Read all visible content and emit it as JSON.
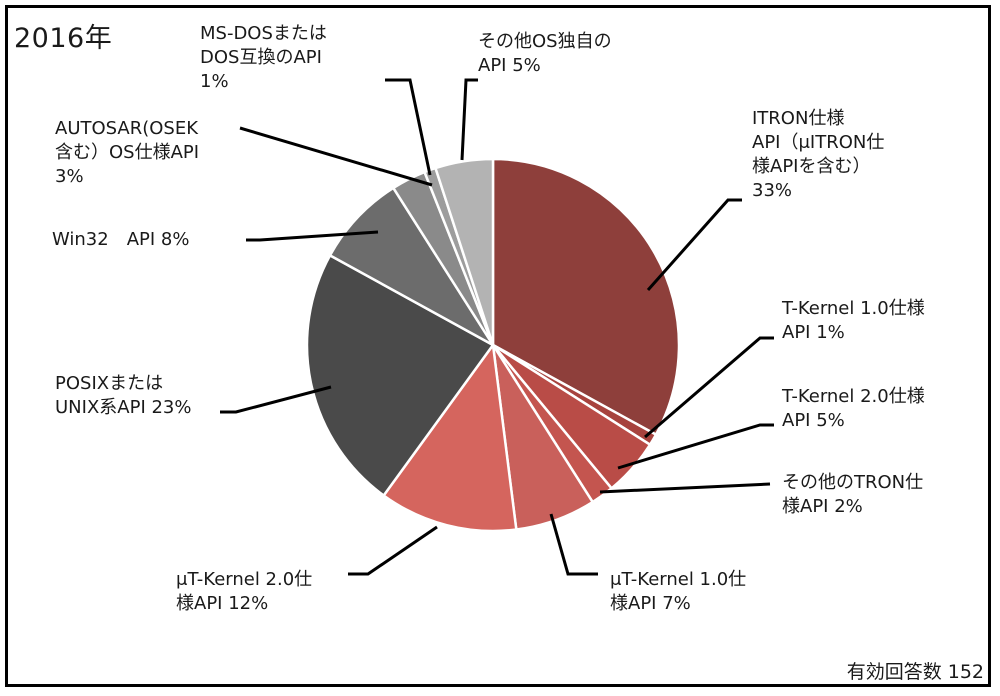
{
  "header": {
    "year": "2016年"
  },
  "footer": {
    "count_label": "有効回答数",
    "count_value": "152"
  },
  "chart_data": {
    "type": "pie",
    "title": "2016年",
    "start": "top",
    "direction": "clockwise",
    "slices": [
      {
        "lines": [
          "ITRON仕様",
          "API（μITRON仕",
          "様APIを含む）",
          "33%"
        ],
        "value": 33,
        "color": "#8e3f3b"
      },
      {
        "lines": [
          "T-Kernel 1.0仕様",
          "API 1%"
        ],
        "value": 1,
        "color": "#a7433e"
      },
      {
        "lines": [
          "T-Kernel 2.0仕様",
          "API 5%"
        ],
        "value": 5,
        "color": "#b94c47"
      },
      {
        "lines": [
          "その他のTRON仕",
          "様API 2%"
        ],
        "value": 2,
        "color": "#c4554f"
      },
      {
        "lines": [
          "μT-Kernel 1.0仕",
          "様API 7%"
        ],
        "value": 7,
        "color": "#c9605b"
      },
      {
        "lines": [
          "μT-Kernel 2.0仕",
          "様API 12%"
        ],
        "value": 12,
        "color": "#d5655e"
      },
      {
        "lines": [
          "POSIXまたは",
          "UNIX系API 23%"
        ],
        "value": 23,
        "color": "#4a4a4a"
      },
      {
        "lines": [
          "Win32　API 8%"
        ],
        "value": 8,
        "color": "#6c6c6c"
      },
      {
        "lines": [
          "AUTOSAR(OSEK",
          "含む）OS仕様API",
          "3%"
        ],
        "value": 3,
        "color": "#8a8a8a"
      },
      {
        "lines": [
          "MS-DOSまたは",
          "DOS互換のAPI",
          "1%"
        ],
        "value": 1,
        "color": "#9d9d9d"
      },
      {
        "lines": [
          "その他OS独自の",
          "API 5%"
        ],
        "value": 5,
        "color": "#b3b3b3"
      }
    ]
  }
}
